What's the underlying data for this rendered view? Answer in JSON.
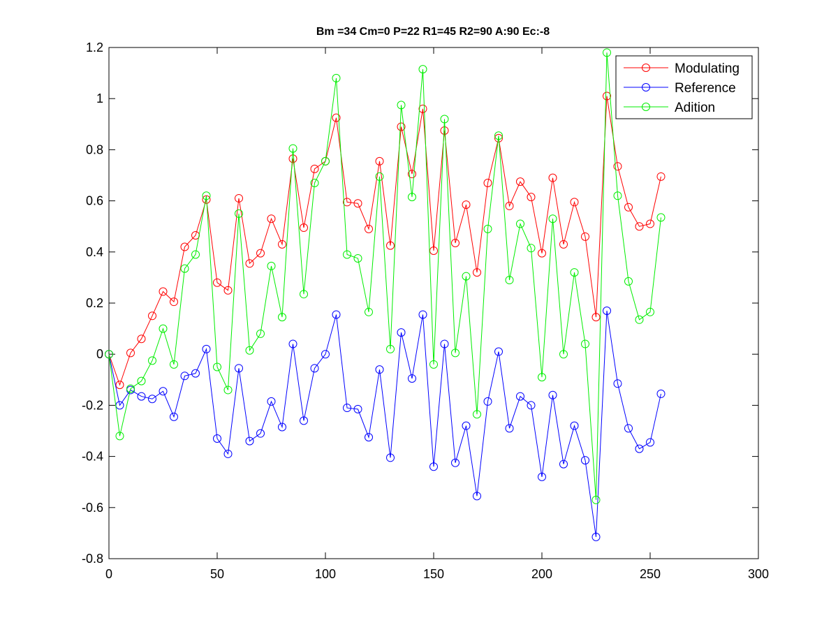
{
  "chart_data": {
    "type": "line",
    "title": "Bm =34  Cm=0  P=22  R1=45  R2=90  A:90  Ec:-8",
    "xlabel": "",
    "ylabel": "",
    "xlim": [
      0,
      300
    ],
    "ylim": [
      -0.8,
      1.2
    ],
    "xticks": [
      0,
      50,
      100,
      150,
      200,
      250,
      300
    ],
    "yticks": [
      -0.8,
      -0.6,
      -0.4,
      -0.2,
      0,
      0.2,
      0.4,
      0.6,
      0.8,
      1,
      1.2
    ],
    "xtick_labels": [
      "0",
      "50",
      "100",
      "150",
      "200",
      "250",
      "300"
    ],
    "ytick_labels": [
      "-0.8",
      "-0.6",
      "-0.4",
      "-0.2",
      "0",
      "0.2",
      "0.4",
      "0.6",
      "0.8",
      "1",
      "1.2"
    ],
    "grid": false,
    "legend_position": "top-right",
    "marker": "circle",
    "x": [
      0,
      5,
      10,
      15,
      20,
      25,
      30,
      35,
      40,
      45,
      50,
      55,
      60,
      65,
      70,
      75,
      80,
      85,
      90,
      95,
      100,
      105,
      110,
      115,
      120,
      125,
      130,
      135,
      140,
      145,
      150,
      155,
      160,
      165,
      170,
      175,
      180,
      185,
      190,
      195,
      200,
      205,
      210,
      215,
      220,
      225,
      230,
      235,
      240,
      245,
      250,
      255
    ],
    "series": [
      {
        "name": "Modulating",
        "color": "#ff0000",
        "values": [
          0,
          -0.12,
          0.005,
          0.06,
          0.15,
          0.245,
          0.205,
          0.42,
          0.465,
          0.605,
          0.28,
          0.25,
          0.61,
          0.355,
          0.395,
          0.53,
          0.43,
          0.765,
          0.495,
          0.725,
          0.755,
          0.925,
          0.595,
          0.59,
          0.49,
          0.755,
          0.425,
          0.89,
          0.705,
          0.96,
          0.405,
          0.875,
          0.435,
          0.585,
          0.32,
          0.67,
          0.845,
          0.58,
          0.675,
          0.615,
          0.395,
          0.69,
          0.43,
          0.595,
          0.46,
          0.145,
          1.01,
          0.735,
          0.575,
          0.5,
          0.51,
          0.695
        ]
      },
      {
        "name": "Reference",
        "color": "#0000ff",
        "values": [
          0,
          -0.2,
          -0.14,
          -0.165,
          -0.175,
          -0.145,
          -0.245,
          -0.085,
          -0.075,
          0.02,
          -0.33,
          -0.39,
          -0.055,
          -0.34,
          -0.31,
          -0.185,
          -0.285,
          0.04,
          -0.26,
          -0.055,
          0.0,
          0.155,
          -0.21,
          -0.215,
          -0.325,
          -0.06,
          -0.405,
          0.085,
          -0.095,
          0.155,
          -0.44,
          0.04,
          -0.425,
          -0.28,
          -0.555,
          -0.185,
          0.01,
          -0.29,
          -0.165,
          -0.2,
          -0.48,
          -0.16,
          -0.43,
          -0.28,
          -0.415,
          -0.715,
          0.17,
          -0.115,
          -0.29,
          -0.37,
          -0.345,
          -0.155
        ]
      },
      {
        "name": "Adition",
        "color": "#00ee00",
        "values": [
          0,
          -0.32,
          -0.135,
          -0.105,
          -0.025,
          0.1,
          -0.04,
          0.335,
          0.39,
          0.62,
          -0.05,
          -0.14,
          0.55,
          0.015,
          0.08,
          0.345,
          0.145,
          0.805,
          0.235,
          0.67,
          0.755,
          1.08,
          0.39,
          0.375,
          0.165,
          0.695,
          0.02,
          0.975,
          0.615,
          1.115,
          -0.04,
          0.92,
          0.005,
          0.305,
          -0.235,
          0.49,
          0.855,
          0.29,
          0.51,
          0.415,
          -0.09,
          0.53,
          0.0,
          0.32,
          0.04,
          -0.57,
          1.18,
          0.62,
          0.285,
          0.135,
          0.165,
          0.535
        ]
      }
    ]
  }
}
